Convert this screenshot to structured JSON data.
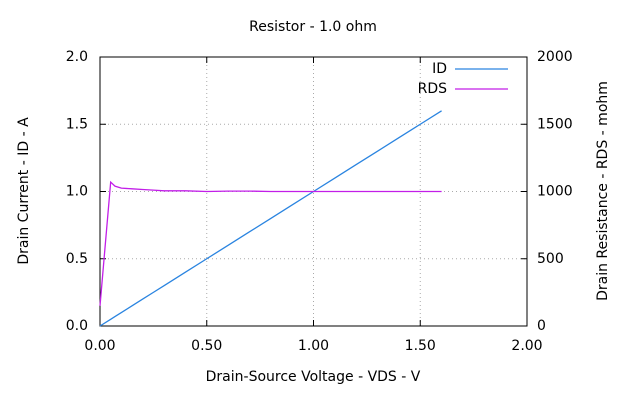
{
  "chart_data": {
    "type": "line",
    "title": "Resistor - 1.0 ohm",
    "xlabel": "Drain-Source Voltage - VDS - V",
    "ylabel": "Drain Current - ID - A",
    "y2label": "Drain Resistance - RDS - mohm",
    "x": [
      0,
      0.05,
      0.07,
      0.1,
      0.15,
      0.2,
      0.25,
      0.3,
      0.4,
      0.5,
      0.6,
      0.7,
      0.8,
      0.9,
      1.0,
      1.1,
      1.2,
      1.3,
      1.4,
      1.5,
      1.6
    ],
    "series": [
      {
        "name": "ID",
        "color": "#2a84e0",
        "values": [
          0,
          0.05,
          0.07,
          0.1,
          0.15,
          0.2,
          0.25,
          0.3,
          0.4,
          0.5,
          0.6,
          0.7,
          0.8,
          0.9,
          1.0,
          1.1,
          1.2,
          1.3,
          1.4,
          1.5,
          1.6
        ]
      },
      {
        "name": "RDS",
        "color": "#c21ee8",
        "axis": "y2",
        "values": [
          150,
          1070,
          1040,
          1025,
          1020,
          1015,
          1010,
          1005,
          1005,
          1000,
          1003,
          1003,
          1000,
          1000,
          1000,
          1000,
          1000,
          1000,
          1000,
          1000,
          1000
        ]
      }
    ],
    "xlim": [
      0,
      2
    ],
    "ylim": [
      0,
      2
    ],
    "y2lim": [
      0,
      2000
    ],
    "xticks": [
      {
        "value": 0,
        "label": "0.00"
      },
      {
        "value": 0.5,
        "label": "0.50"
      },
      {
        "value": 1,
        "label": "1.00"
      },
      {
        "value": 1.5,
        "label": "1.50"
      },
      {
        "value": 2,
        "label": "2.00"
      }
    ],
    "yticks": [
      {
        "value": 0,
        "label": "0.0"
      },
      0.5,
      {
        "value": 1,
        "label": "1.0"
      },
      1.5,
      {
        "value": 2,
        "label": "2.0"
      }
    ],
    "y2ticks": [
      0,
      500,
      1000,
      1500,
      2000
    ],
    "grid": true,
    "legend": "top-right"
  }
}
